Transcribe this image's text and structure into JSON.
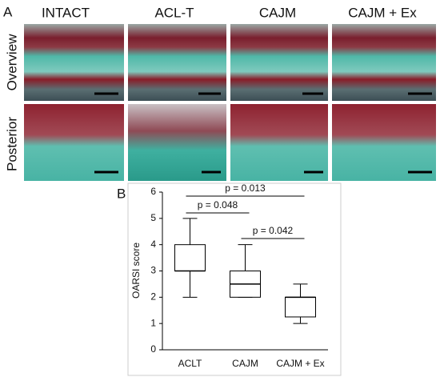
{
  "panel_a": {
    "label": "A",
    "columns": [
      "INTACT",
      "ACL-T",
      "CAJM",
      "CAJM + Ex"
    ],
    "rows": [
      "Overview",
      "Posterior"
    ]
  },
  "chart_data": {
    "type": "box",
    "label": "B",
    "ylabel": "OARSI score",
    "categories": [
      "ACLT",
      "CAJM",
      "CAJM + Ex"
    ],
    "min": [
      2,
      2,
      1
    ],
    "q1": [
      3,
      2,
      1.25
    ],
    "median": [
      3,
      2.5,
      2
    ],
    "q3": [
      4,
      3,
      2
    ],
    "max": [
      5,
      4,
      2.5
    ],
    "ylim": [
      0,
      6
    ],
    "yticks": [
      0,
      1,
      2,
      3,
      4,
      5,
      6
    ],
    "annotations": [
      "p = 0.013",
      "p = 0.048",
      "p = 0.042"
    ]
  }
}
